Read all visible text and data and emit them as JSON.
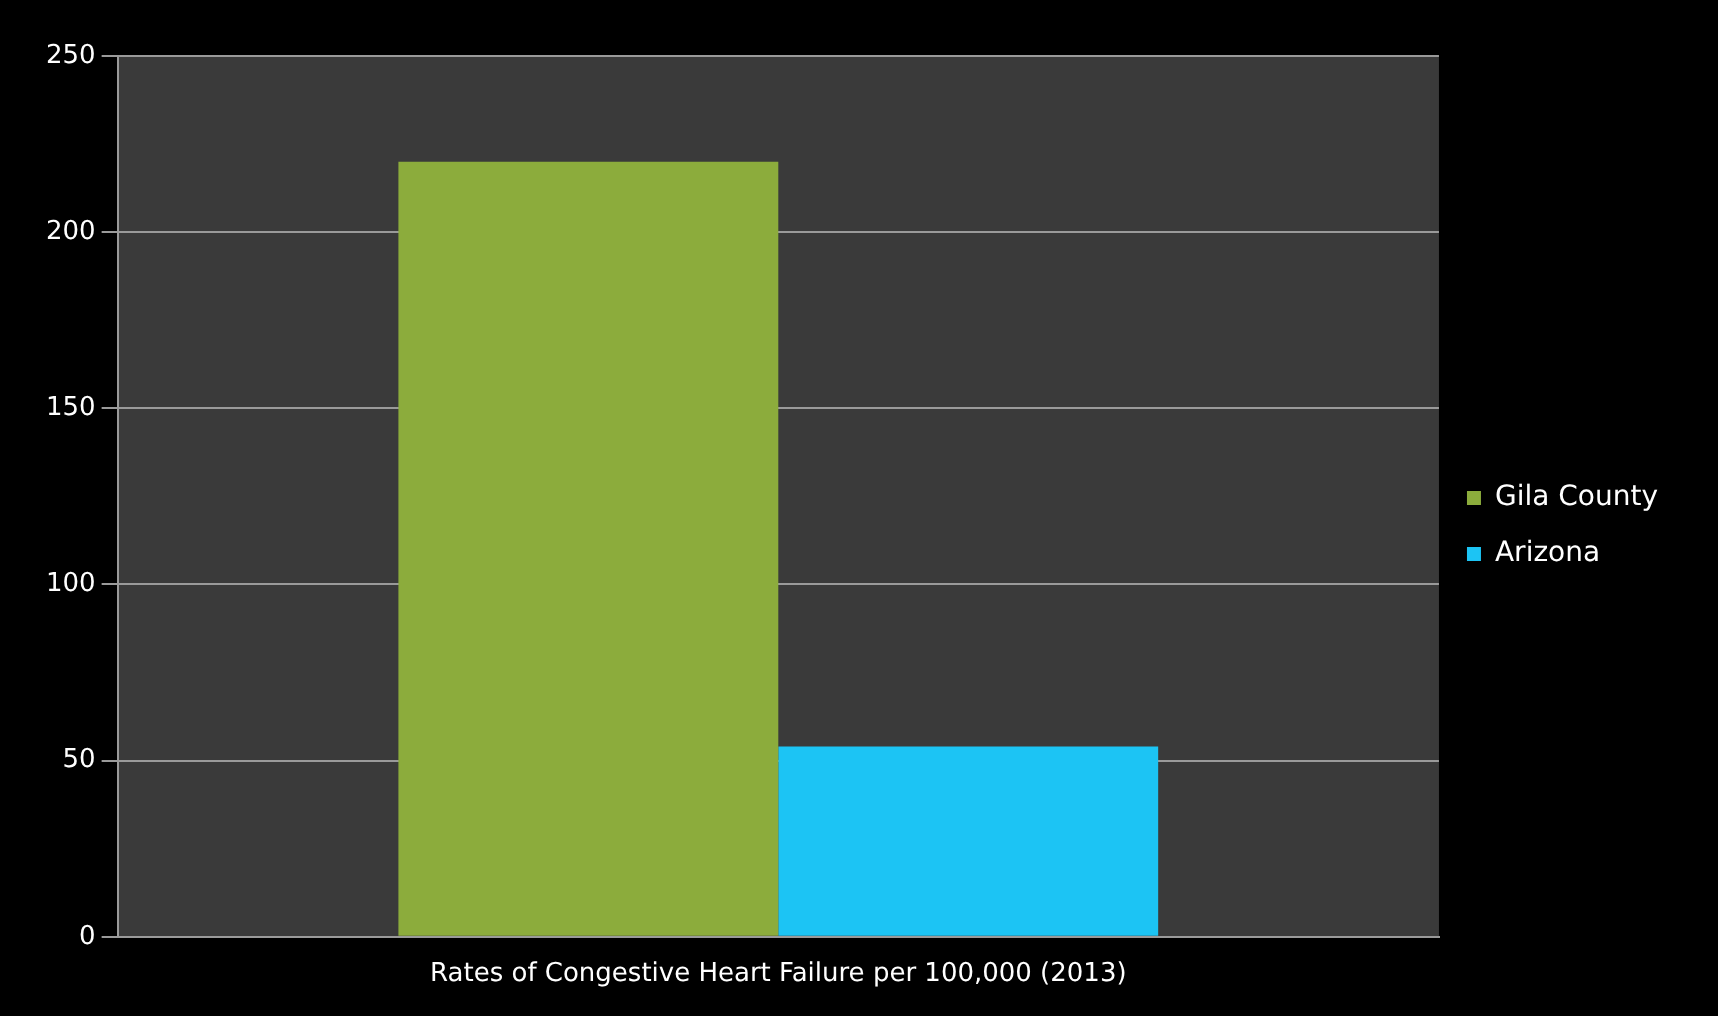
{
  "chart_data": {
    "type": "bar",
    "categories": [
      "Rates of Congestive Heart Failure per 100,000 (2013)"
    ],
    "series": [
      {
        "name": "Gila County",
        "color": "#8cac3c",
        "values": [
          220
        ]
      },
      {
        "name": "Arizona",
        "color": "#1cc4f4",
        "values": [
          54
        ]
      }
    ],
    "ylim": [
      0,
      250
    ],
    "yticks": [
      0,
      50,
      100,
      150,
      200,
      250
    ],
    "grid": "y",
    "legend": "right"
  }
}
